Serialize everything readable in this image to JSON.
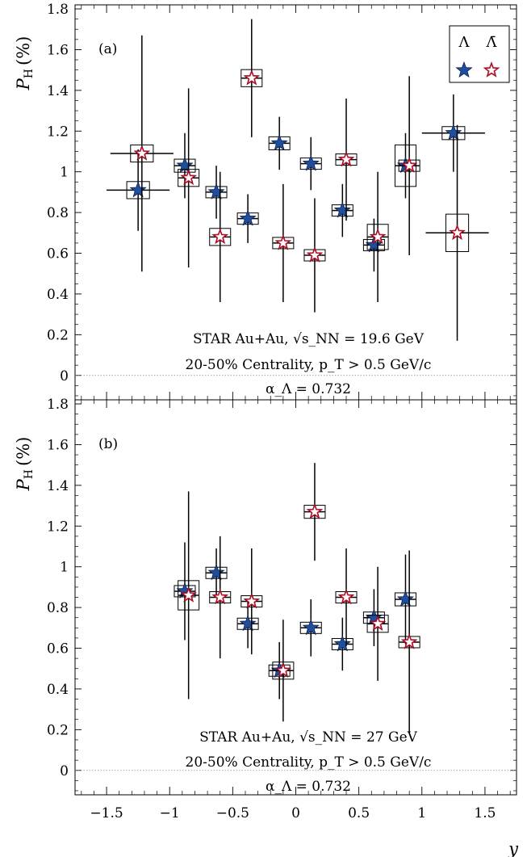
{
  "chart_data": [
    {
      "type": "scatter",
      "panel_label": "(a)",
      "ylabel": "P_H (%)",
      "xlabel": "",
      "xlim": [
        -1.75,
        1.75
      ],
      "ylim": [
        -0.12,
        1.82
      ],
      "grid": false,
      "annotations": [
        "STAR Au+Au, √s_NN = 19.6 GeV",
        "20-50% Centrality, p_T > 0.5 GeV/c",
        "α_Λ = 0.732"
      ],
      "legend": {
        "position": "top-right",
        "entries": [
          "Λ",
          "Λ̄"
        ]
      },
      "series": [
        {
          "name": "Λ",
          "color": "#1f4e9c",
          "points": [
            {
              "x": -1.25,
              "y": 0.91,
              "xerr": 0.25,
              "yerr": 0.2,
              "sys": 0.04
            },
            {
              "x": -0.88,
              "y": 1.03,
              "xerr": 0.08,
              "yerr": 0.16,
              "sys": 0.03
            },
            {
              "x": -0.63,
              "y": 0.9,
              "xerr": 0.08,
              "yerr": 0.13,
              "sys": 0.02
            },
            {
              "x": -0.38,
              "y": 0.77,
              "xerr": 0.08,
              "yerr": 0.12,
              "sys": 0.02
            },
            {
              "x": -0.13,
              "y": 1.14,
              "xerr": 0.08,
              "yerr": 0.13,
              "sys": 0.03
            },
            {
              "x": 0.12,
              "y": 1.04,
              "xerr": 0.08,
              "yerr": 0.13,
              "sys": 0.02
            },
            {
              "x": 0.37,
              "y": 0.81,
              "xerr": 0.08,
              "yerr": 0.13,
              "sys": 0.02
            },
            {
              "x": 0.62,
              "y": 0.64,
              "xerr": 0.08,
              "yerr": 0.13,
              "sys": 0.02
            },
            {
              "x": 0.87,
              "y": 1.03,
              "xerr": 0.08,
              "yerr": 0.16,
              "sys": 0.1
            },
            {
              "x": 1.25,
              "y": 1.19,
              "xerr": 0.25,
              "yerr": 0.19,
              "sys": 0.03
            }
          ]
        },
        {
          "name": "Λ̄",
          "color": "#c8102e",
          "points": [
            {
              "x": -1.22,
              "y": 1.09,
              "xerr": 0.25,
              "yerr": 0.58,
              "sys": 0.04
            },
            {
              "x": -0.85,
              "y": 0.97,
              "xerr": 0.08,
              "yerr": 0.44,
              "sys": 0.04
            },
            {
              "x": -0.6,
              "y": 0.68,
              "xerr": 0.08,
              "yerr": 0.32,
              "sys": 0.04
            },
            {
              "x": -0.35,
              "y": 1.46,
              "xerr": 0.08,
              "yerr": 0.29,
              "sys": 0.04
            },
            {
              "x": -0.1,
              "y": 0.65,
              "xerr": 0.08,
              "yerr": 0.29,
              "sys": 0.02
            },
            {
              "x": 0.15,
              "y": 0.59,
              "xerr": 0.08,
              "yerr": 0.28,
              "sys": 0.02
            },
            {
              "x": 0.4,
              "y": 1.06,
              "xerr": 0.08,
              "yerr": 0.3,
              "sys": 0.02
            },
            {
              "x": 0.65,
              "y": 0.68,
              "xerr": 0.08,
              "yerr": 0.32,
              "sys": 0.06
            },
            {
              "x": 0.9,
              "y": 1.03,
              "xerr": 0.08,
              "yerr": 0.44,
              "sys": 0.02
            },
            {
              "x": 1.28,
              "y": 0.7,
              "xerr": 0.25,
              "yerr": 0.53,
              "sys": 0.09
            }
          ]
        }
      ]
    },
    {
      "type": "scatter",
      "panel_label": "(b)",
      "ylabel": "P_H (%)",
      "xlabel": "y",
      "xlim": [
        -1.75,
        1.75
      ],
      "ylim": [
        -0.12,
        1.82
      ],
      "grid": false,
      "annotations": [
        "STAR Au+Au, √s_NN = 27 GeV",
        "20-50% Centrality, p_T > 0.5 GeV/c",
        "α_Λ = 0.732"
      ],
      "series": [
        {
          "name": "Λ",
          "color": "#1f4e9c",
          "points": [
            {
              "x": -0.88,
              "y": 0.88,
              "xerr": 0.08,
              "yerr": 0.24,
              "sys": 0.01
            },
            {
              "x": -0.63,
              "y": 0.97,
              "xerr": 0.08,
              "yerr": 0.12,
              "sys": 0.02
            },
            {
              "x": -0.38,
              "y": 0.72,
              "xerr": 0.08,
              "yerr": 0.12,
              "sys": 0.02
            },
            {
              "x": -0.13,
              "y": 0.49,
              "xerr": 0.08,
              "yerr": 0.14,
              "sys": 0.01
            },
            {
              "x": 0.12,
              "y": 0.7,
              "xerr": 0.08,
              "yerr": 0.14,
              "sys": 0.02
            },
            {
              "x": 0.37,
              "y": 0.62,
              "xerr": 0.08,
              "yerr": 0.13,
              "sys": 0.01
            },
            {
              "x": 0.62,
              "y": 0.75,
              "xerr": 0.08,
              "yerr": 0.14,
              "sys": 0.02
            },
            {
              "x": 0.87,
              "y": 0.84,
              "xerr": 0.08,
              "yerr": 0.22,
              "sys": 0.03
            }
          ]
        },
        {
          "name": "Λ̄",
          "color": "#c8102e",
          "points": [
            {
              "x": -0.85,
              "y": 0.86,
              "xerr": 0.08,
              "yerr": 0.51,
              "sys": 0.07
            },
            {
              "x": -0.6,
              "y": 0.85,
              "xerr": 0.08,
              "yerr": 0.3,
              "sys": 0.02
            },
            {
              "x": -0.35,
              "y": 0.83,
              "xerr": 0.08,
              "yerr": 0.26,
              "sys": 0.02
            },
            {
              "x": -0.1,
              "y": 0.49,
              "xerr": 0.08,
              "yerr": 0.25,
              "sys": 0.04
            },
            {
              "x": 0.15,
              "y": 1.27,
              "xerr": 0.08,
              "yerr": 0.24,
              "sys": 0.03
            },
            {
              "x": 0.4,
              "y": 0.85,
              "xerr": 0.08,
              "yerr": 0.24,
              "sys": 0.02
            },
            {
              "x": 0.65,
              "y": 0.72,
              "xerr": 0.08,
              "yerr": 0.28,
              "sys": 0.04
            },
            {
              "x": 0.9,
              "y": 0.63,
              "xerr": 0.08,
              "yerr": 0.45,
              "sys": 0.02
            }
          ]
        }
      ]
    }
  ],
  "x_ticks": [
    "−1.5",
    "−1",
    "−0.5",
    "0",
    "0.5",
    "1",
    "1.5"
  ],
  "y_ticks": [
    "0",
    "0.2",
    "0.4",
    "0.6",
    "0.8",
    "1",
    "1.2",
    "1.4",
    "1.6",
    "1.8"
  ]
}
